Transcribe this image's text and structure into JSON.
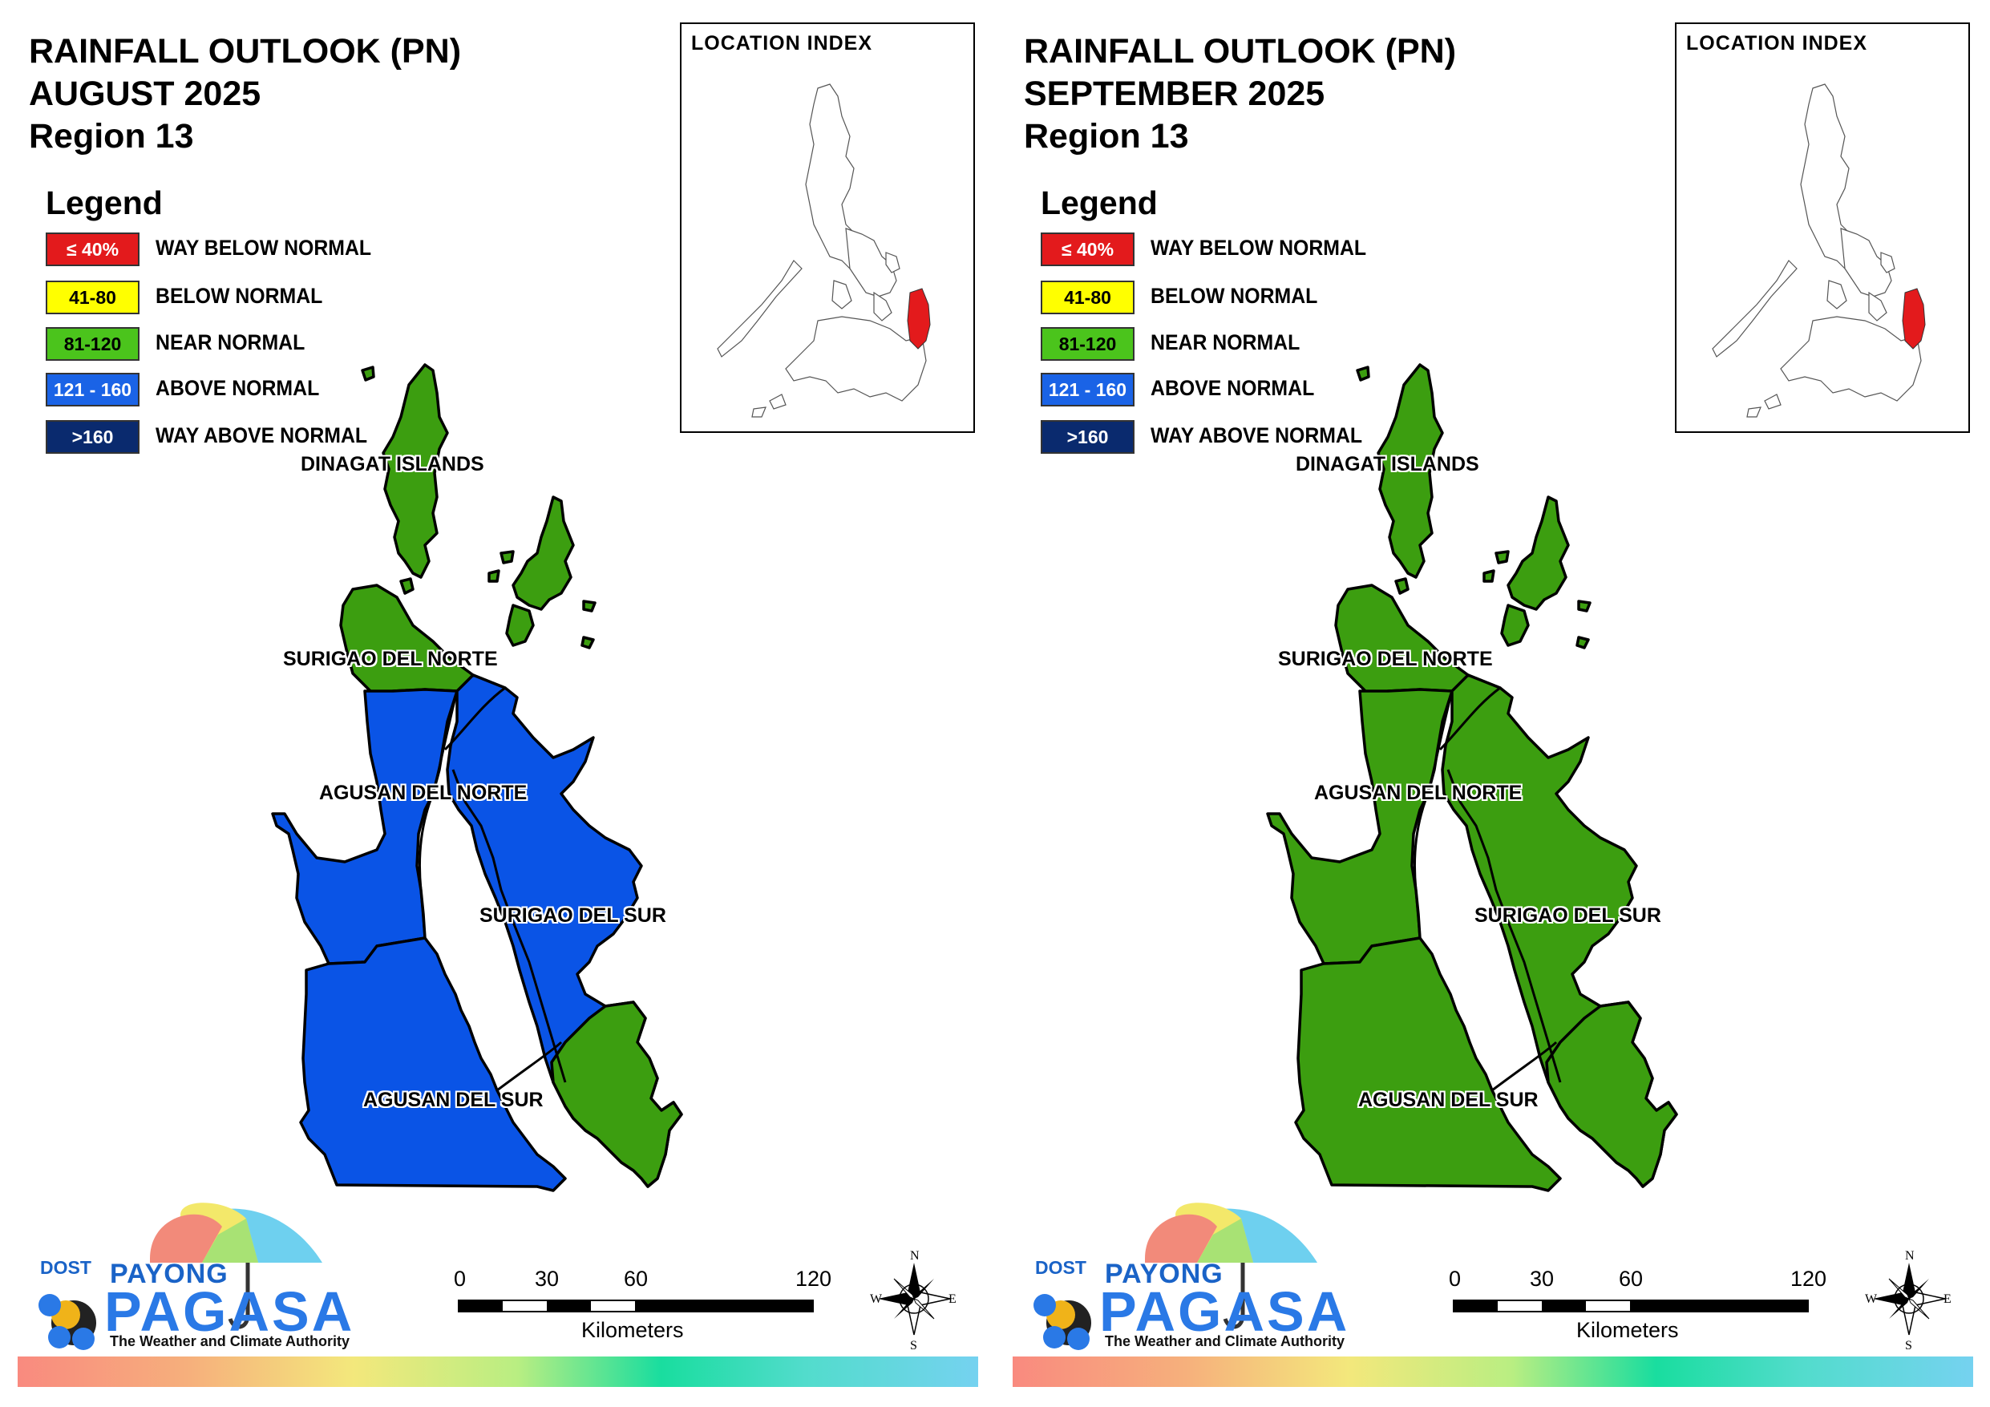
{
  "panels": [
    {
      "title_line1": "RAINFALL OUTLOOK (PN)",
      "title_line2": "AUGUST 2025",
      "title_line3": "Region 13",
      "location_index_title": "LOCATION INDEX",
      "provinces": {
        "dinagat": {
          "name": "DINAGAT ISLANDS",
          "category": "near_normal"
        },
        "surigao_norte": {
          "name": "SURIGAO DEL NORTE",
          "category": "near_normal"
        },
        "agusan_norte": {
          "name": "AGUSAN DEL NORTE",
          "category": "above_normal"
        },
        "surigao_sur": {
          "name": "SURIGAO DEL SUR",
          "category": "above_normal"
        },
        "agusan_sur": {
          "name": "AGUSAN DEL SUR",
          "category": "above_normal"
        }
      }
    },
    {
      "title_line1": "RAINFALL OUTLOOK (PN)",
      "title_line2": "SEPTEMBER 2025",
      "title_line3": "Region 13",
      "location_index_title": "LOCATION INDEX",
      "provinces": {
        "dinagat": {
          "name": "DINAGAT ISLANDS",
          "category": "near_normal"
        },
        "surigao_norte": {
          "name": "SURIGAO DEL NORTE",
          "category": "near_normal"
        },
        "agusan_norte": {
          "name": "AGUSAN DEL NORTE",
          "category": "near_normal"
        },
        "surigao_sur": {
          "name": "SURIGAO DEL SUR",
          "category": "near_normal"
        },
        "agusan_sur": {
          "name": "AGUSAN DEL SUR",
          "category": "near_normal"
        }
      }
    }
  ],
  "legend": {
    "title": "Legend",
    "items": [
      {
        "range": "≤ 40%",
        "label": "WAY BELOW NORMAL",
        "color": "#e31a1c",
        "text_color": "#ffffff"
      },
      {
        "range": "41-80",
        "label": "BELOW NORMAL",
        "color": "#ffff00",
        "text_color": "#000000"
      },
      {
        "range": "81-120",
        "label": "NEAR NORMAL",
        "color": "#4bc41c",
        "text_color": "#000000"
      },
      {
        "range": "121 - 160",
        "label": "ABOVE NORMAL",
        "color": "#1a63e6",
        "text_color": "#ffffff"
      },
      {
        "range": ">160",
        "label": "WAY ABOVE NORMAL",
        "color": "#0a2a6e",
        "text_color": "#ffffff"
      }
    ]
  },
  "category_colors": {
    "near_normal": "#3c9e10",
    "above_normal": "#0a54e6",
    "highlight_region": "#e31a1c"
  },
  "scale": {
    "ticks": [
      "0",
      "30",
      "60",
      "120"
    ],
    "unit": "Kilometers"
  },
  "compass": {
    "n": "N",
    "s": "S",
    "e": "E",
    "w": "W"
  },
  "logo": {
    "dost": "DOST",
    "payong": "PAYONG",
    "pagasa": "PAGASA",
    "tagline": "The Weather and Climate Authority"
  }
}
